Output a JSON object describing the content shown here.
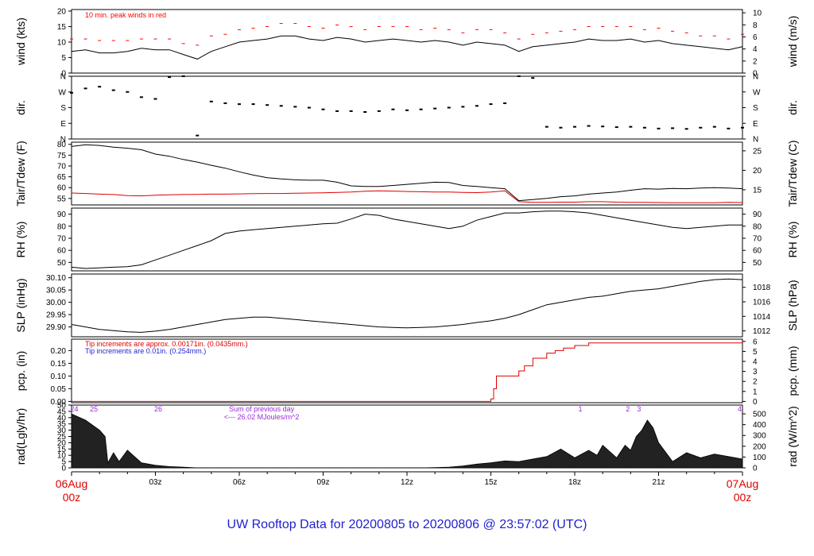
{
  "footer": "UW Rooftop Data for 20200805  to  20200806 @ 23:57:02  (UTC)",
  "x_axis": {
    "start_date": "06Aug",
    "start_time": "00z",
    "end_date": "07Aug",
    "end_time": "00z",
    "ticks": [
      "03z",
      "06z",
      "09z",
      "12z",
      "15z",
      "18z",
      "21z"
    ]
  },
  "colors": {
    "line": "#000000",
    "peak": "#ff0000",
    "red": "#e00000",
    "blue": "#1f1fd0",
    "purple": "#9a2bd6"
  },
  "chart_data": [
    {
      "id": "wind",
      "type": "line",
      "ylabel": "wind (kts)",
      "ylabel_right": "wind (m/s)",
      "ylim": [
        0,
        20.5
      ],
      "yticks": [
        0,
        5,
        10,
        15,
        20
      ],
      "right_ticks": [
        [
          "0",
          0
        ],
        [
          "2",
          3.89
        ],
        [
          "4",
          7.78
        ],
        [
          "6",
          11.66
        ],
        [
          "8",
          15.55
        ],
        [
          "10",
          19.44
        ]
      ],
      "annotation": "10 min. peak winds in red",
      "x_hours": [
        0,
        0.5,
        1,
        1.5,
        2,
        2.5,
        3,
        3.5,
        4,
        4.5,
        5,
        5.5,
        6,
        6.5,
        7,
        7.5,
        8,
        8.5,
        9,
        9.5,
        10,
        10.5,
        11,
        11.5,
        12,
        12.5,
        13,
        13.5,
        14,
        14.5,
        15,
        15.5,
        16,
        16.5,
        17,
        17.5,
        18,
        18.5,
        19,
        19.5,
        20,
        20.5,
        21,
        21.5,
        22,
        22.5,
        23,
        23.5,
        24
      ],
      "series": [
        {
          "values": [
            7,
            7.5,
            6.5,
            6.5,
            7,
            8,
            7.5,
            7.5,
            6,
            4.5,
            7,
            8.5,
            10,
            10.5,
            11,
            12,
            12,
            11,
            10.5,
            11.5,
            11,
            10,
            10.5,
            11,
            10.5,
            10,
            10.5,
            10,
            9,
            10,
            9.5,
            9,
            7,
            8.5,
            9,
            9.5,
            10,
            11,
            10.5,
            10.5,
            11,
            10,
            10.5,
            9.5,
            9,
            8.5,
            8,
            7.5,
            8.5
          ]
        },
        {
          "values": [
            11,
            11,
            10.5,
            10.5,
            10.5,
            11,
            11,
            11,
            9.5,
            9,
            12,
            12.5,
            14,
            14.5,
            15,
            16,
            16,
            15,
            14.5,
            15.5,
            15,
            14,
            15,
            15,
            15,
            14,
            14.5,
            14,
            13,
            14,
            14,
            13,
            11,
            12.5,
            13,
            13.5,
            14,
            15,
            15,
            15,
            15,
            14,
            14.5,
            13.5,
            13,
            12,
            12,
            11,
            12.5
          ]
        }
      ]
    },
    {
      "id": "dir",
      "type": "scatter",
      "ylabel": "dir.",
      "ylabel_right": "dir.",
      "ylim": [
        0,
        360
      ],
      "yticks": [
        [
          "N",
          0
        ],
        [
          "E",
          90
        ],
        [
          "S",
          180
        ],
        [
          "W",
          270
        ],
        [
          "N",
          360
        ]
      ],
      "x_hours": [
        0,
        0.5,
        1,
        1.5,
        2,
        2.5,
        3,
        3.5,
        4,
        4.5,
        5,
        5.5,
        6,
        6.5,
        7,
        7.5,
        8,
        8.5,
        9,
        9.5,
        10,
        10.5,
        11,
        11.5,
        12,
        12.5,
        13,
        13.5,
        14,
        14.5,
        15,
        15.5,
        16,
        16.5,
        17,
        17.5,
        18,
        18.5,
        19,
        19.5,
        20,
        20.5,
        21,
        21.5,
        22,
        22.5,
        23,
        23.5,
        24
      ],
      "series": [
        {
          "values": [
            265,
            290,
            300,
            280,
            270,
            240,
            230,
            355,
            360,
            20,
            215,
            205,
            200,
            200,
            195,
            190,
            185,
            180,
            170,
            160,
            160,
            155,
            160,
            170,
            165,
            170,
            175,
            180,
            185,
            190,
            200,
            205,
            360,
            350,
            70,
            65,
            70,
            75,
            72,
            68,
            70,
            65,
            60,
            62,
            58,
            65,
            70,
            60,
            65
          ]
        }
      ]
    },
    {
      "id": "temp",
      "type": "line",
      "ylabel": "Tair/Tdew (F)",
      "ylabel_right": "Tair/Tdew (C)",
      "ylim": [
        52,
        81
      ],
      "yticks": [
        55,
        60,
        65,
        70,
        75,
        80
      ],
      "right_ticks": [
        [
          "15",
          59
        ],
        [
          "20",
          68
        ],
        [
          "25",
          77
        ]
      ],
      "x_hours": [
        0,
        0.5,
        1,
        1.5,
        2,
        2.5,
        3,
        3.5,
        4,
        4.5,
        5,
        5.5,
        6,
        6.5,
        7,
        7.5,
        8,
        8.5,
        9,
        9.5,
        10,
        10.5,
        11,
        11.5,
        12,
        12.5,
        13,
        13.5,
        14,
        14.5,
        15,
        15.5,
        16,
        16.5,
        17,
        17.5,
        18,
        18.5,
        19,
        19.5,
        20,
        20.5,
        21,
        21.5,
        22,
        22.5,
        23,
        23.5,
        24
      ],
      "series": [
        {
          "name": "Tair",
          "values": [
            79,
            79.8,
            79.5,
            78.7,
            78.2,
            77.5,
            75.5,
            74.5,
            73,
            71.8,
            70.3,
            69,
            67.3,
            65.8,
            64.6,
            64,
            63.6,
            63.4,
            63.4,
            62.5,
            60.8,
            60.5,
            60.5,
            61,
            61.5,
            62,
            62.5,
            62.4,
            61,
            60.5,
            60,
            59.5,
            54,
            54.5,
            55,
            55.8,
            56.2,
            57,
            57.5,
            58,
            58.8,
            59.5,
            59.3,
            59.6,
            59.5,
            59.8,
            60,
            59.8,
            59.5
          ]
        },
        {
          "name": "Tdew",
          "values": [
            57.5,
            57.3,
            57,
            56.8,
            56.3,
            56.2,
            56.5,
            56.7,
            56.8,
            56.9,
            57,
            57,
            57.1,
            57.2,
            57.3,
            57.3,
            57.4,
            57.5,
            57.6,
            57.8,
            58,
            58.3,
            58.5,
            58.4,
            58.2,
            58.1,
            58,
            58,
            57.8,
            57.7,
            58,
            58.5,
            53.5,
            53.2,
            53.2,
            53.3,
            53.3,
            53.5,
            53.5,
            53.3,
            53.2,
            53.2,
            53.1,
            53,
            53,
            53,
            53,
            53.2,
            53.1
          ]
        }
      ]
    },
    {
      "id": "rh",
      "type": "line",
      "ylabel": "RH (%)",
      "ylabel_right": "RH (%)",
      "ylim": [
        43,
        95
      ],
      "yticks": [
        50,
        60,
        70,
        80,
        90
      ],
      "right_ticks": [
        [
          "50",
          50
        ],
        [
          "60",
          60
        ],
        [
          "70",
          70
        ],
        [
          "80",
          80
        ],
        [
          "90",
          90
        ]
      ],
      "x_hours": [
        0,
        0.5,
        1,
        1.5,
        2,
        2.5,
        3,
        3.5,
        4,
        4.5,
        5,
        5.5,
        6,
        6.5,
        7,
        7.5,
        8,
        8.5,
        9,
        9.5,
        10,
        10.5,
        11,
        11.5,
        12,
        12.5,
        13,
        13.5,
        14,
        14.5,
        15,
        15.5,
        16,
        16.5,
        17,
        17.5,
        18,
        18.5,
        19,
        19.5,
        20,
        20.5,
        21,
        21.5,
        22,
        22.5,
        23,
        23.5,
        24
      ],
      "series": [
        {
          "values": [
            46,
            45,
            45.5,
            46,
            46.5,
            48,
            52,
            56,
            60,
            64,
            68,
            74,
            76,
            77,
            78,
            79,
            80,
            81,
            82,
            82.5,
            86,
            90,
            89,
            86,
            84,
            82,
            80,
            78,
            80,
            85,
            88,
            91,
            91,
            92,
            92.5,
            92.5,
            92,
            91,
            89,
            87,
            85,
            83,
            81,
            79,
            78,
            79,
            80,
            81,
            81
          ]
        }
      ]
    },
    {
      "id": "slp",
      "type": "line",
      "ylabel": "SLP (inHg)",
      "ylabel_right": "SLP (hPa)",
      "ylim": [
        29.86,
        30.115
      ],
      "yticks": [
        29.9,
        29.95,
        30.0,
        30.05,
        30.1
      ],
      "right_ticks": [
        [
          "1012",
          29.884
        ],
        [
          "1014",
          29.943
        ],
        [
          "1016",
          30.002
        ],
        [
          "1018",
          30.061
        ]
      ],
      "x_hours": [
        0,
        0.5,
        1,
        1.5,
        2,
        2.5,
        3,
        3.5,
        4,
        4.5,
        5,
        5.5,
        6,
        6.5,
        7,
        7.5,
        8,
        8.5,
        9,
        9.5,
        10,
        10.5,
        11,
        11.5,
        12,
        12.5,
        13,
        13.5,
        14,
        14.5,
        15,
        15.5,
        16,
        16.5,
        17,
        17.5,
        18,
        18.5,
        19,
        19.5,
        20,
        20.5,
        21,
        21.5,
        22,
        22.5,
        23,
        23.5,
        24
      ],
      "series": [
        {
          "values": [
            29.91,
            29.9,
            29.89,
            29.885,
            29.88,
            29.878,
            29.883,
            29.89,
            29.9,
            29.91,
            29.92,
            29.93,
            29.935,
            29.94,
            29.94,
            29.935,
            29.93,
            29.925,
            29.92,
            29.915,
            29.91,
            29.905,
            29.9,
            29.898,
            29.896,
            29.898,
            29.9,
            29.905,
            29.91,
            29.918,
            29.925,
            29.935,
            29.95,
            29.97,
            29.99,
            30.0,
            30.01,
            30.02,
            30.025,
            30.035,
            30.045,
            30.05,
            30.055,
            30.065,
            30.075,
            30.085,
            30.092,
            30.095,
            30.092
          ]
        }
      ]
    },
    {
      "id": "pcp",
      "type": "line",
      "ylabel": "pcp. (in)",
      "ylabel_right": "pcp. (mm)",
      "ylim": [
        -0.005,
        0.245
      ],
      "yticks": [
        0.0,
        0.05,
        0.1,
        0.15,
        0.2
      ],
      "right_ticks": [
        [
          "0",
          0
        ],
        [
          "1",
          0.03937
        ],
        [
          "2",
          0.07874
        ],
        [
          "3",
          0.11811
        ],
        [
          "4",
          0.15748
        ],
        [
          "5",
          0.19685
        ],
        [
          "6",
          0.23622
        ]
      ],
      "notes": [
        "Tip increments are approx. 0.00171in. (0.0435mm.)",
        "Tip increments are 0.01in. (0.254mm.)"
      ],
      "x_hours": [
        0,
        14.8,
        15.0,
        15.1,
        15.2,
        15.6,
        16.0,
        16.2,
        16.5,
        17.0,
        17.3,
        17.6,
        18.0,
        18.5,
        24
      ],
      "series": [
        {
          "name": "pcp",
          "values": [
            0,
            0,
            0.01,
            0.05,
            0.1,
            0.1,
            0.12,
            0.14,
            0.17,
            0.19,
            0.2,
            0.21,
            0.22,
            0.23,
            0.23
          ]
        }
      ]
    },
    {
      "id": "rad",
      "type": "area",
      "ylabel": "rad(Lgly/hr)",
      "ylabel_right": "rad (W/m^2)",
      "ylim": [
        0,
        50
      ],
      "yticks": [
        0,
        5,
        10,
        15,
        20,
        25,
        30,
        35,
        40,
        45,
        50
      ],
      "right_ticks": [
        [
          "0",
          0
        ],
        [
          "100",
          8.6
        ],
        [
          "200",
          17.2
        ],
        [
          "300",
          25.8
        ],
        [
          "400",
          34.4
        ],
        [
          "500",
          43
        ]
      ],
      "day_labels": [
        [
          "24",
          0.1
        ],
        [
          "25",
          0.8
        ],
        [
          "26",
          3.1
        ],
        [
          "1",
          18.2
        ],
        [
          "2",
          19.9
        ],
        [
          "3",
          20.3
        ],
        [
          "4",
          23.9
        ]
      ],
      "sum_text": "Sum of previous day",
      "sum_value": "<--- 26.02 MJoules/m^2",
      "x_hours": [
        0,
        0.5,
        1,
        1.2,
        1.3,
        1.5,
        1.7,
        2,
        2.5,
        3,
        3.5,
        4,
        4.5,
        5,
        12.5,
        13,
        13.5,
        14,
        14.5,
        15,
        15.5,
        16,
        16.5,
        17,
        17.5,
        18,
        18.5,
        18.8,
        19,
        19.5,
        19.8,
        20,
        20.2,
        20.4,
        20.6,
        20.8,
        21,
        21.5,
        22,
        22.5,
        23,
        23.5,
        24
      ],
      "series": [
        {
          "values": [
            43,
            38,
            30,
            25,
            4,
            12,
            5,
            14,
            4,
            2,
            1,
            0.5,
            0,
            0,
            0,
            0.2,
            0.6,
            1.5,
            3,
            4,
            5.5,
            5,
            7,
            9,
            15,
            8,
            14,
            10,
            18,
            8,
            18,
            14,
            25,
            30,
            38,
            32,
            20,
            5,
            12,
            8,
            11,
            9,
            7
          ]
        }
      ]
    }
  ]
}
